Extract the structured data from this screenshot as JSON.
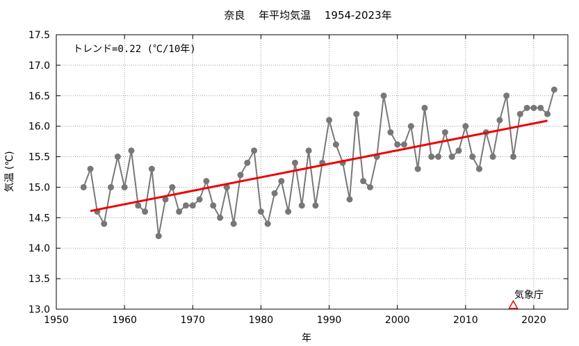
{
  "chart_data": {
    "type": "line",
    "title": "奈良　 年平均気温　 1954-2023年",
    "xlabel": "年",
    "ylabel": "気温 (℃)",
    "xlim": [
      1950,
      2025
    ],
    "ylim": [
      13.0,
      17.5
    ],
    "x_ticks": [
      1950,
      1960,
      1970,
      1980,
      1990,
      2000,
      2010,
      2020
    ],
    "y_ticks": [
      "13.0",
      "13.5",
      "14.0",
      "14.5",
      "15.0",
      "15.5",
      "16.0",
      "16.5",
      "17.0",
      "17.5"
    ],
    "grid": true,
    "annotation": "トレンド=0.22 (℃/10年)",
    "credit": "気象庁",
    "series": [
      {
        "x": [
          1954,
          1955,
          1956,
          1957,
          1958,
          1959,
          1960,
          1961,
          1962,
          1963,
          1964,
          1965,
          1966,
          1967,
          1968,
          1969,
          1970,
          1971,
          1972,
          1973,
          1974,
          1975,
          1976,
          1977,
          1978,
          1979,
          1980,
          1981,
          1982,
          1983,
          1984,
          1985,
          1986,
          1987,
          1988,
          1989,
          1990,
          1991,
          1992,
          1993,
          1994,
          1995,
          1996,
          1997,
          1998,
          1999,
          2000,
          2001,
          2002,
          2003,
          2004,
          2005,
          2006,
          2007,
          2008,
          2009,
          2010,
          2011,
          2012,
          2013,
          2014,
          2015,
          2016,
          2017,
          2018,
          2019,
          2020,
          2021,
          2022,
          2023
        ],
        "values": [
          15.0,
          15.3,
          14.6,
          14.4,
          15.0,
          15.5,
          15.0,
          15.6,
          14.7,
          14.6,
          15.3,
          14.2,
          14.8,
          15.0,
          14.6,
          14.7,
          14.7,
          14.8,
          15.1,
          14.7,
          14.5,
          15.0,
          14.4,
          15.2,
          15.4,
          15.6,
          14.6,
          14.4,
          14.9,
          15.1,
          14.6,
          15.4,
          14.7,
          15.6,
          14.7,
          15.4,
          16.1,
          15.7,
          15.4,
          14.8,
          16.2,
          15.1,
          15.0,
          15.5,
          16.5,
          15.9,
          15.7,
          15.7,
          16.0,
          15.3,
          16.3,
          15.5,
          15.5,
          15.9,
          15.5,
          15.6,
          16.0,
          15.5,
          15.3,
          15.9,
          15.5,
          16.1,
          16.5,
          15.5,
          16.2,
          16.3,
          16.3,
          16.3,
          16.2,
          16.6
        ]
      }
    ],
    "trend": {
      "x": [
        1955,
        2022
      ],
      "y": [
        14.61,
        16.09
      ]
    },
    "marker": {
      "x": 2017,
      "y": 13.0,
      "shape": "triangle"
    },
    "colors": {
      "line": "#777777",
      "points": "#777777",
      "trend": "#ee0000",
      "marker": "#dd0000",
      "grid": "#999999"
    }
  }
}
